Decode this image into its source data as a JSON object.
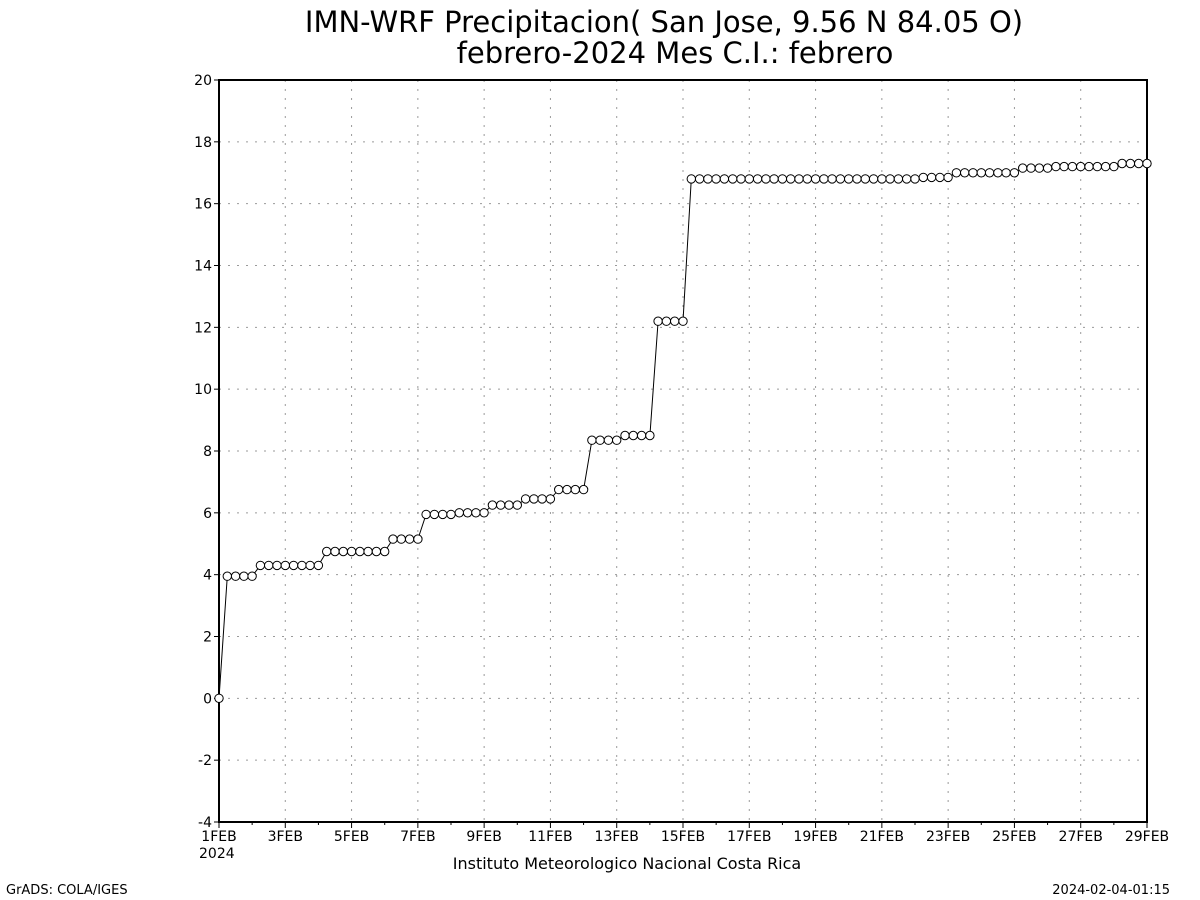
{
  "header": {
    "title_line1": "IMN-WRF  Precipitacion( San Jose, 9.56  N 84.05  O)",
    "title_line2": "febrero-2024 Mes C.I.: febrero"
  },
  "footer": {
    "institution": "Instituto Meteorologico Nacional Costa Rica",
    "software": "GrADS: COLA/IGES",
    "timestamp": "2024-02-04-01:15"
  },
  "chart_data": {
    "type": "line",
    "title": "IMN-WRF  Precipitacion( San Jose, 9.56  N 84.05  O)",
    "subtitle": "febrero-2024 Mes C.I.: febrero",
    "x_start": "2024-02-01",
    "x_end": "2024-02-29",
    "x_step_hours": 6,
    "x_tick_labels": [
      "1FEB",
      "3FEB",
      "5FEB",
      "7FEB",
      "9FEB",
      "11FEB",
      "13FEB",
      "15FEB",
      "17FEB",
      "19FEB",
      "21FEB",
      "23FEB",
      "25FEB",
      "27FEB",
      "29FEB"
    ],
    "x_tick_year": "2024",
    "y_ticks": [
      "-4",
      "-2",
      "0",
      "2",
      "4",
      "6",
      "8",
      "10",
      "12",
      "14",
      "16",
      "18",
      "20"
    ],
    "ylim": [
      -4,
      20
    ],
    "grid": true,
    "marker": "open-circle",
    "line_color": "#000000",
    "y": [
      0,
      3.95,
      3.95,
      3.95,
      3.95,
      4.3,
      4.3,
      4.3,
      4.3,
      4.3,
      4.3,
      4.3,
      4.3,
      4.75,
      4.75,
      4.75,
      4.75,
      4.75,
      4.75,
      4.75,
      4.75,
      5.15,
      5.15,
      5.15,
      5.15,
      5.95,
      5.95,
      5.95,
      5.95,
      6.0,
      6.0,
      6.0,
      6.0,
      6.25,
      6.25,
      6.25,
      6.25,
      6.45,
      6.45,
      6.45,
      6.45,
      6.75,
      6.75,
      6.75,
      6.75,
      8.35,
      8.35,
      8.35,
      8.35,
      8.5,
      8.5,
      8.5,
      8.5,
      12.2,
      12.2,
      12.2,
      12.2,
      16.8,
      16.8,
      16.8,
      16.8,
      16.8,
      16.8,
      16.8,
      16.8,
      16.8,
      16.8,
      16.8,
      16.8,
      16.8,
      16.8,
      16.8,
      16.8,
      16.8,
      16.8,
      16.8,
      16.8,
      16.8,
      16.8,
      16.8,
      16.8,
      16.8,
      16.8,
      16.8,
      16.8,
      16.85,
      16.85,
      16.85,
      16.85,
      17.0,
      17.0,
      17.0,
      17.0,
      17.0,
      17.0,
      17.0,
      17.0,
      17.15,
      17.15,
      17.15,
      17.15,
      17.2,
      17.2,
      17.2,
      17.2,
      17.2,
      17.2,
      17.2,
      17.2,
      17.3,
      17.3,
      17.3,
      17.3
    ]
  }
}
